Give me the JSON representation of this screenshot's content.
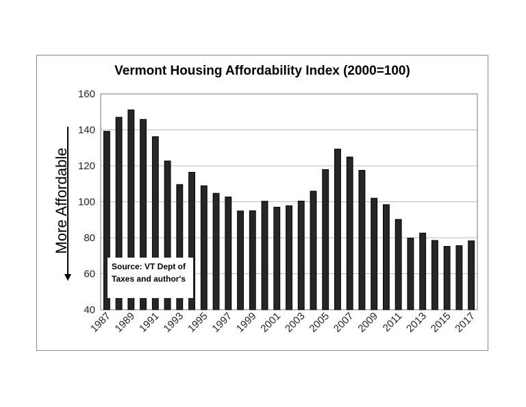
{
  "chart_data": {
    "type": "bar",
    "title": "Vermont Housing Affordability Index (2000=100)",
    "ylabel": "More Affordable",
    "xlabel": "",
    "ylim": [
      40,
      160
    ],
    "yticks": [
      40,
      60,
      80,
      100,
      120,
      140,
      160
    ],
    "grid": true,
    "categories": [
      "1987",
      "1988",
      "1989",
      "1990",
      "1991",
      "1992",
      "1993",
      "1994",
      "1995",
      "1996",
      "1997",
      "1998",
      "1999",
      "2000",
      "2001",
      "2002",
      "2003",
      "2004",
      "2005",
      "2006",
      "2007",
      "2008",
      "2009",
      "2010",
      "2011",
      "2012",
      "2013",
      "2014",
      "2015",
      "2016",
      "2017"
    ],
    "xtick_labels": [
      "1987",
      "1989",
      "1991",
      "1993",
      "1995",
      "1997",
      "1999",
      "2001",
      "2003",
      "2005",
      "2007",
      "2009",
      "2011",
      "2013",
      "2015",
      "2017"
    ],
    "values": [
      139.2,
      147,
      151.1,
      145.8,
      136.2,
      122.7,
      109.6,
      116.4,
      108.9,
      104.7,
      102.7,
      94.9,
      95,
      100.3,
      97,
      97.8,
      100.4,
      105.9,
      117.9,
      129.3,
      124.9,
      117.5,
      102,
      98.4,
      90.2,
      79.8,
      82.6,
      78.5,
      75.2,
      75.6,
      78.3
    ],
    "bar_color": "#262626",
    "annotation": "Source:  VT Dept of Taxes and author's"
  }
}
